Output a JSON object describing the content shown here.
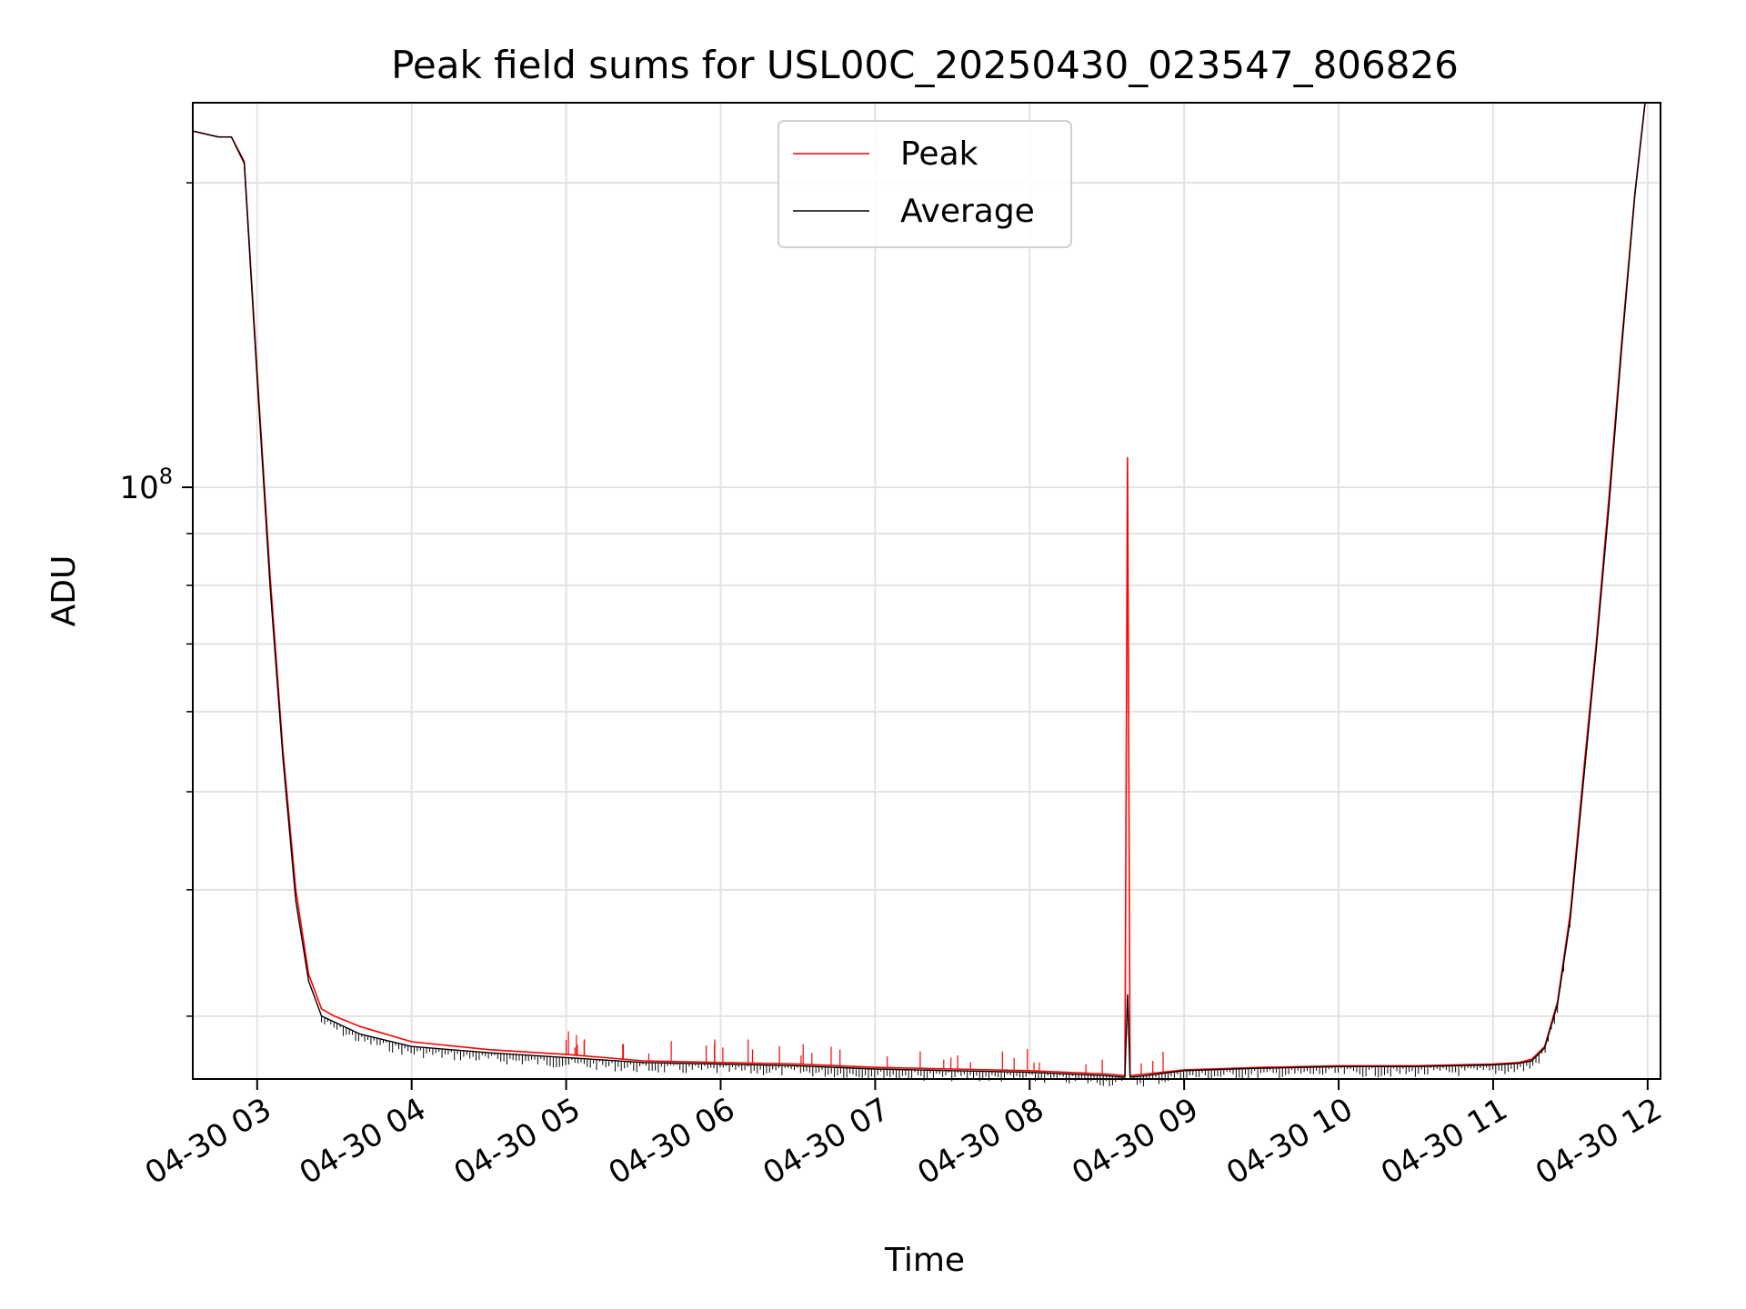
{
  "chart_data": {
    "type": "line",
    "title": "Peak field sums for USL00C_20250430_023547_806826",
    "xlabel": "Time",
    "ylabel": "ADU",
    "y_scale": "log",
    "grid": true,
    "legend_position": "upper-center",
    "ylim": [
      26000000,
      240000000
    ],
    "xlim": [
      "2025-04-30 02:35",
      "2025-04-30 12:05"
    ],
    "x_ticks": [
      {
        "x": "2025-04-30 03:00",
        "label": "04-30 03"
      },
      {
        "x": "2025-04-30 04:00",
        "label": "04-30 04"
      },
      {
        "x": "2025-04-30 05:00",
        "label": "04-30 05"
      },
      {
        "x": "2025-04-30 06:00",
        "label": "04-30 06"
      },
      {
        "x": "2025-04-30 07:00",
        "label": "04-30 07"
      },
      {
        "x": "2025-04-30 08:00",
        "label": "04-30 08"
      },
      {
        "x": "2025-04-30 09:00",
        "label": "04-30 09"
      },
      {
        "x": "2025-04-30 10:00",
        "label": "04-30 10"
      },
      {
        "x": "2025-04-30 11:00",
        "label": "04-30 11"
      },
      {
        "x": "2025-04-30 12:00",
        "label": "04-30 12"
      }
    ],
    "y_major_ticks": [
      {
        "value": 100000000,
        "base": "10",
        "exp": "8"
      }
    ],
    "y_minor_ticks": [
      30000000,
      40000000,
      50000000,
      60000000,
      70000000,
      80000000,
      90000000,
      200000000
    ],
    "series": [
      {
        "name": "Peak",
        "color": "#ff0000",
        "x": [
          "2025-04-30 02:35",
          "2025-04-30 02:45",
          "2025-04-30 02:50",
          "2025-04-30 02:55",
          "2025-04-30 03:00",
          "2025-04-30 03:05",
          "2025-04-30 03:10",
          "2025-04-30 03:15",
          "2025-04-30 03:20",
          "2025-04-30 03:25",
          "2025-04-30 03:30",
          "2025-04-30 03:40",
          "2025-04-30 04:00",
          "2025-04-30 04:30",
          "2025-04-30 05:00",
          "2025-04-30 05:30",
          "2025-04-30 06:00",
          "2025-04-30 06:30",
          "2025-04-30 07:00",
          "2025-04-30 07:30",
          "2025-04-30 08:00",
          "2025-04-30 08:30",
          "2025-04-30 08:37",
          "2025-04-30 08:38",
          "2025-04-30 08:39",
          "2025-04-30 08:45",
          "2025-04-30 09:00",
          "2025-04-30 09:30",
          "2025-04-30 10:00",
          "2025-04-30 10:30",
          "2025-04-30 11:00",
          "2025-04-30 11:10",
          "2025-04-30 11:15",
          "2025-04-30 11:20",
          "2025-04-30 11:25",
          "2025-04-30 11:30",
          "2025-04-30 11:35",
          "2025-04-30 11:40",
          "2025-04-30 11:45",
          "2025-04-30 11:50",
          "2025-04-30 11:55",
          "2025-04-30 11:59"
        ],
        "y": [
          225000000,
          222000000,
          222000000,
          210000000,
          130000000,
          82000000,
          55000000,
          40000000,
          33000000,
          30500000,
          30000000,
          29300000,
          28300000,
          27800000,
          27500000,
          27100000,
          27000000,
          26900000,
          26700000,
          26600000,
          26500000,
          26300000,
          26200000,
          107000000,
          26200000,
          26300000,
          26550000,
          26700000,
          26800000,
          26800000,
          26900000,
          27000000,
          27200000,
          28000000,
          31000000,
          38000000,
          52000000,
          70000000,
          98000000,
          140000000,
          195000000,
          240000000
        ]
      },
      {
        "name": "Average",
        "color": "#000000",
        "x": [
          "2025-04-30 02:35",
          "2025-04-30 02:45",
          "2025-04-30 02:50",
          "2025-04-30 02:55",
          "2025-04-30 03:00",
          "2025-04-30 03:05",
          "2025-04-30 03:10",
          "2025-04-30 03:15",
          "2025-04-30 03:20",
          "2025-04-30 03:25",
          "2025-04-30 03:30",
          "2025-04-30 03:40",
          "2025-04-30 04:00",
          "2025-04-30 04:30",
          "2025-04-30 05:00",
          "2025-04-30 05:30",
          "2025-04-30 06:00",
          "2025-04-30 06:30",
          "2025-04-30 07:00",
          "2025-04-30 07:30",
          "2025-04-30 08:00",
          "2025-04-30 08:30",
          "2025-04-30 08:37",
          "2025-04-30 08:38",
          "2025-04-30 08:39",
          "2025-04-30 08:45",
          "2025-04-30 09:00",
          "2025-04-30 09:30",
          "2025-04-30 10:00",
          "2025-04-30 10:30",
          "2025-04-30 11:00",
          "2025-04-30 11:10",
          "2025-04-30 11:15",
          "2025-04-30 11:20",
          "2025-04-30 11:25",
          "2025-04-30 11:30",
          "2025-04-30 11:35",
          "2025-04-30 11:40",
          "2025-04-30 11:45",
          "2025-04-30 11:50",
          "2025-04-30 11:55",
          "2025-04-30 11:59"
        ],
        "y": [
          225000000,
          222000000,
          222000000,
          209000000,
          128000000,
          80000000,
          54000000,
          39000000,
          32500000,
          30000000,
          29600000,
          28800000,
          28000000,
          27600000,
          27300000,
          27000000,
          26900000,
          26800000,
          26600000,
          26500000,
          26400000,
          26200000,
          26100000,
          31500000,
          26100000,
          26200000,
          26500000,
          26650000,
          26750000,
          26750000,
          26850000,
          26950000,
          27100000,
          27900000,
          30800000,
          37500000,
          51000000,
          69000000,
          96000000,
          138000000,
          194000000,
          240000000
        ]
      }
    ]
  }
}
